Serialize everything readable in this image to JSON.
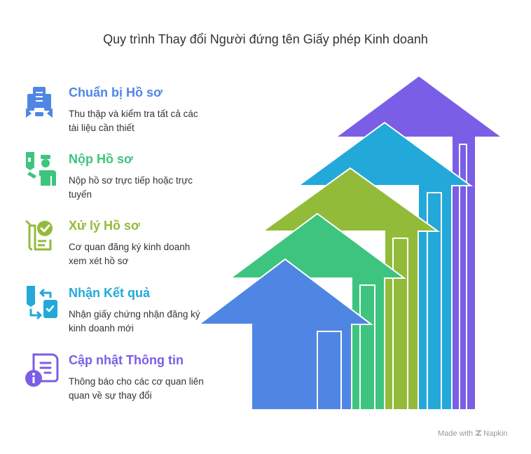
{
  "title": "Quy trình Thay đổi Người đứng tên Giấy phép Kinh doanh",
  "colors": {
    "blue": "#4f86e3",
    "green": "#3dc47e",
    "olive": "#93bb3a",
    "cyan": "#22a9da",
    "purple": "#7a5ee6"
  },
  "steps": [
    {
      "heading": "Chuẩn bị Hồ sơ",
      "description": "Thu thập và kiểm tra tất cả các tài liệu cần thiết",
      "color": "#4f86e3",
      "icon": "documents-clipboard-icon"
    },
    {
      "heading": "Nộp Hồ sơ",
      "description": "Nộp hồ sơ trực tiếp hoặc trực tuyến",
      "color": "#3dc47e",
      "icon": "person-submit-door-icon"
    },
    {
      "heading": "Xử lý Hồ sơ",
      "description": "Cơ quan đăng ký kinh doanh xem xét hồ sơ",
      "color": "#93bb3a",
      "icon": "approved-document-icon"
    },
    {
      "heading": "Nhận Kết quả",
      "description": "Nhận giấy chứng nhận đăng ký kinh doanh mới",
      "color": "#22a9da",
      "icon": "receive-exchange-icon"
    },
    {
      "heading": "Cập nhật Thông tin",
      "description": "Thông báo cho các cơ quan liên quan về sự thay đổi",
      "color": "#7a5ee6",
      "icon": "info-document-icon"
    }
  ],
  "footer": {
    "made_with": "Made with",
    "brand": "Napkin"
  }
}
